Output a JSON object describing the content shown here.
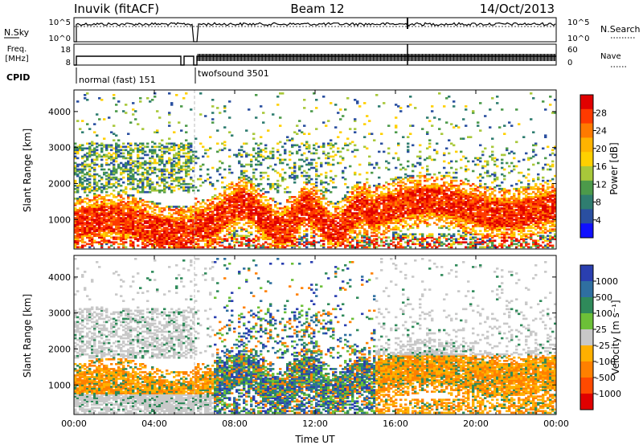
{
  "header": {
    "station": "Inuvik (fitACF)",
    "beam": "Beam 12",
    "date": "14/Oct/2013"
  },
  "noise_panel": {
    "left_label": "N.Sky",
    "left_ticks": [
      "10^5",
      "10^0"
    ],
    "right_label": "N.Search",
    "right_ticks": [
      "10^5",
      "10^0"
    ]
  },
  "freq_panel": {
    "left_label_1": "Freq.",
    "left_label_2": "[MHz]",
    "left_ticks": [
      "18",
      "8"
    ],
    "right_label": "Nave",
    "right_ticks": [
      "60",
      "0"
    ]
  },
  "cpid": {
    "label": "CPID",
    "modes": [
      {
        "name": "normal (fast) 151",
        "start": "00:00",
        "end": "06:00"
      },
      {
        "name": "twofsound 3501",
        "start": "06:00",
        "end": "24:00"
      }
    ]
  },
  "power_colorbar": {
    "label": "Power [dB]",
    "ticks": [
      "28",
      "24",
      "20",
      "16",
      "12",
      "8",
      "4"
    ],
    "colors": [
      "#e00000",
      "#ff3a00",
      "#ff7a00",
      "#ffb300",
      "#ffd000",
      "#a8c83a",
      "#4c9a4a",
      "#2f7d70",
      "#2a4fa0",
      "#1010ff"
    ]
  },
  "velocity_colorbar": {
    "label": "Velocity [m s⁻¹]",
    "ticks": [
      "1000",
      "500",
      "100",
      "25",
      "-25",
      "-100",
      "-500",
      "-1000"
    ],
    "colors": [
      "#2a3fb0",
      "#2f6fa0",
      "#2f8a5a",
      "#6cc038",
      "#c8c8c8",
      "#ffb000",
      "#ff8000",
      "#ff4a00",
      "#e00000"
    ]
  },
  "chart_data": [
    {
      "type": "heatmap",
      "panel": "power",
      "ylabel": "Slant Range [km]",
      "xlabel": "Time UT",
      "x_ticks": [
        "00:00",
        "04:00",
        "08:00",
        "12:00",
        "16:00",
        "20:00",
        "00:00"
      ],
      "xlim_hours": [
        0,
        24
      ],
      "y_ticks": [
        1000,
        2000,
        3000,
        4000
      ],
      "ylim_km": [
        180,
        4600
      ],
      "colorbar": "Power [dB]",
      "colorbar_range": [
        0,
        30
      ]
    },
    {
      "type": "heatmap",
      "panel": "velocity",
      "ylabel": "Slant Range [km]",
      "xlabel": "Time UT",
      "x_ticks": [
        "00:00",
        "04:00",
        "08:00",
        "12:00",
        "16:00",
        "20:00",
        "00:00"
      ],
      "xlim_hours": [
        0,
        24
      ],
      "y_ticks": [
        1000,
        2000,
        3000,
        4000
      ],
      "ylim_km": [
        180,
        4600
      ],
      "colorbar": "Velocity [m s⁻¹]",
      "colorbar_range": [
        -1000,
        1000
      ]
    }
  ]
}
